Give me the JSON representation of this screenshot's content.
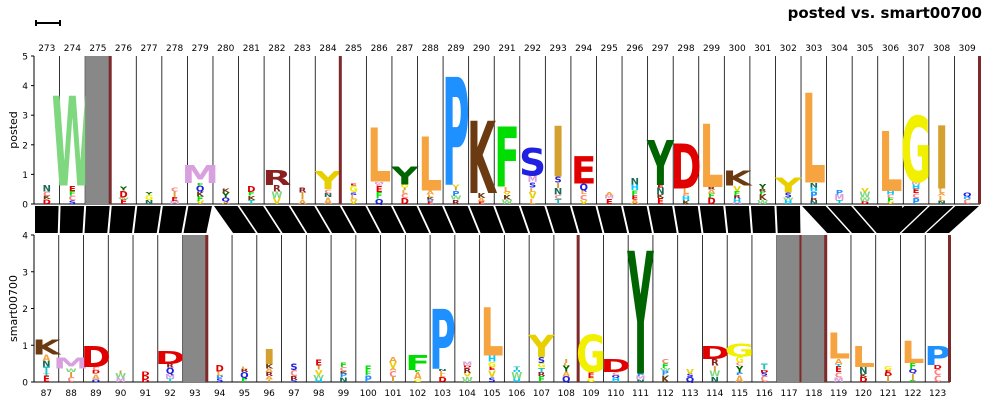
{
  "title": "posted vs. smart00700",
  "top_logo": {
    "ylabel": "posted",
    "y_ticks": [
      "0",
      "1",
      "2",
      "3",
      "4",
      "5"
    ],
    "y_max": 5,
    "positions": [
      "273",
      "274",
      "275",
      "276",
      "277",
      "278",
      "279",
      "280",
      "281",
      "282",
      "283",
      "284",
      "285",
      "286",
      "287",
      "288",
      "289",
      "290",
      "291",
      "292",
      "293",
      "294",
      "295",
      "296",
      "297",
      "298",
      "299",
      "300",
      "301",
      "302",
      "303",
      "304",
      "305",
      "306",
      "307",
      "308",
      "309"
    ],
    "insert_after": [
      "275",
      "284",
      "309"
    ],
    "grey_columns": [
      "275"
    ],
    "major_letters": [
      {
        "pos": "274",
        "letter": "W",
        "height": 3.0,
        "color": "#7fd87f"
      },
      {
        "pos": "279",
        "letter": "M",
        "height": 0.6,
        "color": "#d9a0e0"
      },
      {
        "pos": "282",
        "letter": "R",
        "height": 0.5,
        "color": "#8b2020"
      },
      {
        "pos": "284",
        "letter": "Y",
        "height": 0.6,
        "color": "#e8d000"
      },
      {
        "pos": "286",
        "letter": "L",
        "height": 1.8,
        "color": "#f6a440"
      },
      {
        "pos": "287",
        "letter": "Y",
        "height": 0.6,
        "color": "#006400"
      },
      {
        "pos": "288",
        "letter": "L",
        "height": 1.8,
        "color": "#f6a440"
      },
      {
        "pos": "289",
        "letter": "P",
        "height": 3.6,
        "color": "#1e90ff"
      },
      {
        "pos": "290",
        "letter": "K",
        "height": 2.4,
        "color": "#6b3a10"
      },
      {
        "pos": "291",
        "letter": "F",
        "height": 2.0,
        "color": "#00dd00"
      },
      {
        "pos": "292",
        "letter": "S",
        "height": 0.9,
        "color": "#2020e0"
      },
      {
        "pos": "293",
        "letter": "I",
        "height": 1.7,
        "color": "#d4a030"
      },
      {
        "pos": "294",
        "letter": "E",
        "height": 0.9,
        "color": "#e00000"
      },
      {
        "pos": "297",
        "letter": "Y",
        "height": 1.5,
        "color": "#006400"
      },
      {
        "pos": "298",
        "letter": "D",
        "height": 1.5,
        "color": "#e00000"
      },
      {
        "pos": "299",
        "letter": "L",
        "height": 2.1,
        "color": "#f6a440"
      },
      {
        "pos": "300",
        "letter": "K",
        "height": 0.5,
        "color": "#6b3a10"
      },
      {
        "pos": "302",
        "letter": "Y",
        "height": 0.5,
        "color": "#e8d000"
      },
      {
        "pos": "303",
        "letter": "L",
        "height": 3.0,
        "color": "#f6a440"
      },
      {
        "pos": "306",
        "letter": "L",
        "height": 2.0,
        "color": "#f6a440"
      },
      {
        "pos": "307",
        "letter": "G",
        "height": 2.2,
        "color": "#f0f000"
      },
      {
        "pos": "308",
        "letter": "I",
        "height": 2.1,
        "color": "#d4a030"
      }
    ]
  },
  "bottom_logo": {
    "ylabel": "smart00700",
    "y_ticks": [
      "0",
      "1",
      "2",
      "3",
      "4"
    ],
    "y_max": 4,
    "positions": [
      "87",
      "88",
      "89",
      "90",
      "91",
      "92",
      "93",
      "94",
      "95",
      "96",
      "97",
      "98",
      "99",
      "100",
      "101",
      "102",
      "103",
      "104",
      "105",
      "106",
      "107",
      "108",
      "109",
      "110",
      "111",
      "112",
      "113",
      "114",
      "115",
      "116",
      "117",
      "118",
      "119",
      "120",
      "121",
      "122",
      "123"
    ],
    "insert_after": [
      "93",
      "108",
      "117",
      "118",
      "123"
    ],
    "grey_columns": [
      "93",
      "117",
      "118"
    ],
    "major_letters": [
      {
        "pos": "87",
        "letter": "K",
        "height": 0.4,
        "color": "#6b3a10"
      },
      {
        "pos": "88",
        "letter": "M",
        "height": 0.3,
        "color": "#d9a0e0"
      },
      {
        "pos": "89",
        "letter": "D",
        "height": 0.55,
        "color": "#e00000"
      },
      {
        "pos": "92",
        "letter": "D",
        "height": 0.35,
        "color": "#e00000"
      },
      {
        "pos": "96",
        "letter": "I",
        "height": 0.4,
        "color": "#d4a030"
      },
      {
        "pos": "102",
        "letter": "F",
        "height": 0.4,
        "color": "#00dd00"
      },
      {
        "pos": "103",
        "letter": "P",
        "height": 1.6,
        "color": "#1e90ff"
      },
      {
        "pos": "105",
        "letter": "L",
        "height": 1.3,
        "color": "#f6a440"
      },
      {
        "pos": "107",
        "letter": "Y",
        "height": 0.6,
        "color": "#e8d000"
      },
      {
        "pos": "109",
        "letter": "G",
        "height": 1.0,
        "color": "#f0f000"
      },
      {
        "pos": "110",
        "letter": "D",
        "height": 0.35,
        "color": "#e00000"
      },
      {
        "pos": "111",
        "letter": "Y",
        "height": 3.3,
        "color": "#006400"
      },
      {
        "pos": "114",
        "letter": "D",
        "height": 0.35,
        "color": "#e00000"
      },
      {
        "pos": "115",
        "letter": "G",
        "height": 0.35,
        "color": "#f0f000"
      },
      {
        "pos": "119",
        "letter": "L",
        "height": 0.7,
        "color": "#f6a440"
      },
      {
        "pos": "120",
        "letter": "L",
        "height": 0.55,
        "color": "#f6a440"
      },
      {
        "pos": "122",
        "letter": "L",
        "height": 0.6,
        "color": "#f6a440"
      },
      {
        "pos": "123",
        "letter": "P",
        "height": 0.5,
        "color": "#1e90ff"
      }
    ]
  },
  "colors": {
    "insert_marker": "#7f2a2a",
    "grey_column": "#888888",
    "alignment_band": "#000000",
    "residues": {
      "A": "#f6a440",
      "C": "#ff8080",
      "D": "#e00000",
      "E": "#e00000",
      "F": "#00dd00",
      "G": "#f0f000",
      "H": "#00ccff",
      "I": "#d4a030",
      "K": "#6b3a10",
      "L": "#f6a440",
      "M": "#d9a0e0",
      "N": "#1a6a5a",
      "P": "#1e90ff",
      "Q": "#2020e0",
      "R": "#8b2020",
      "S": "#2020e0",
      "T": "#20c0c0",
      "V": "#e8d000",
      "W": "#7fd87f",
      "Y": "#006400"
    }
  },
  "alignment": {
    "top_to_bottom": [
      [
        0,
        0
      ],
      [
        1,
        1
      ],
      [
        2,
        2
      ],
      [
        3,
        3
      ],
      [
        4,
        4
      ],
      [
        5,
        5
      ],
      [
        6,
        6
      ],
      [
        7,
        8
      ],
      [
        8,
        9
      ],
      [
        9,
        10
      ],
      [
        10,
        11
      ],
      [
        11,
        12
      ],
      [
        12,
        13
      ],
      [
        13,
        14
      ],
      [
        14,
        15
      ],
      [
        15,
        16
      ],
      [
        16,
        17
      ],
      [
        17,
        18
      ],
      [
        18,
        19
      ],
      [
        19,
        20
      ],
      [
        20,
        21
      ],
      [
        21,
        22
      ],
      [
        22,
        23
      ],
      [
        23,
        24
      ],
      [
        24,
        25
      ],
      [
        25,
        26
      ],
      [
        26,
        27
      ],
      [
        27,
        28
      ],
      [
        28,
        29
      ],
      [
        29,
        30
      ],
      [
        30,
        32
      ],
      [
        31,
        33
      ],
      [
        32,
        34
      ],
      [
        33,
        34
      ],
      [
        34,
        34
      ],
      [
        35,
        35
      ],
      [
        36,
        36
      ]
    ]
  }
}
